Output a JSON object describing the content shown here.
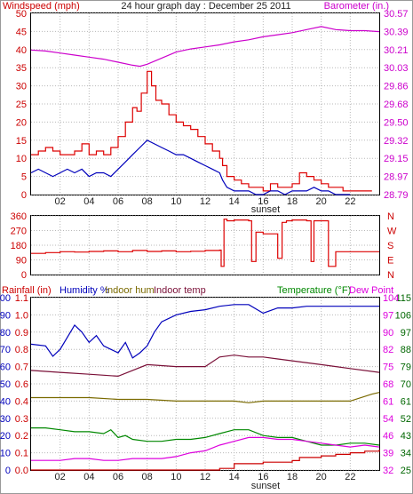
{
  "title": "24 hour graph day : December 25 2011",
  "colors": {
    "wind": "#dd0000",
    "wind_avg": "#0000bb",
    "barometer": "#cc00cc",
    "direction": "#dd0000",
    "rainfall": "#cc0000",
    "humidity": "#0000bb",
    "indoor_hum": "#7a6a00",
    "indoor_temp": "#7a1038",
    "temperature": "#008800",
    "dew_point": "#dd00dd",
    "axis_left_top": "#cc0000",
    "axis_right_top": "#cc00cc",
    "axis_right_bottom": "#006600",
    "grid": "#b8b8b8"
  },
  "chart_data": [
    {
      "type": "line",
      "panel": "wind_barometer",
      "left_label": "Windspeed (mph)",
      "right_label": "Barometer (in.)",
      "x_ticks": [
        "02",
        "04",
        "06",
        "08",
        "10",
        "12",
        "14",
        "16",
        "18",
        "20",
        "22"
      ],
      "sunset_label": "sunset",
      "x_range": [
        0,
        24
      ],
      "ylim": [
        0,
        50
      ],
      "y_ticks": [
        "0",
        "5",
        "10",
        "15",
        "20",
        "25",
        "30",
        "35",
        "40",
        "45",
        "50"
      ],
      "y2lim": [
        28.79,
        30.57
      ],
      "y2_ticks": [
        "28.79",
        "28.97",
        "29.15",
        "29.32",
        "29.50",
        "29.68",
        "29.86",
        "30.03",
        "30.21",
        "30.39",
        "30.57"
      ],
      "series": [
        {
          "key": "wind_gust",
          "x": [
            0,
            0.5,
            1,
            1.5,
            2,
            2.5,
            3,
            3.5,
            4,
            4.5,
            5,
            5.5,
            6,
            6.5,
            7,
            7.3,
            7.6,
            8,
            8.3,
            8.6,
            9,
            9.5,
            10,
            10.5,
            11,
            11.5,
            12,
            12.5,
            13,
            13.2,
            13.5,
            14,
            14.5,
            15,
            15.5,
            16,
            16.5,
            17,
            17.5,
            18,
            18.5,
            19,
            19.5,
            20,
            20.5,
            21,
            21.5,
            22,
            22.5,
            23,
            23.5
          ],
          "values": [
            11,
            12,
            13,
            12,
            11,
            11,
            12,
            14,
            11,
            12,
            11,
            13,
            16,
            20,
            24,
            23,
            28,
            34,
            30,
            26,
            25,
            22,
            20,
            19,
            18,
            16,
            14,
            12,
            10,
            8,
            5,
            4,
            3,
            2,
            2,
            1,
            3,
            2,
            2,
            3,
            6,
            5,
            4,
            3,
            2,
            2,
            1,
            1,
            1,
            1,
            1
          ]
        },
        {
          "key": "wind_avg",
          "x": [
            0,
            0.5,
            1,
            1.5,
            2,
            2.5,
            3,
            3.5,
            4,
            4.5,
            5,
            5.5,
            6,
            6.5,
            7,
            7.5,
            8,
            8.5,
            9,
            9.5,
            10,
            10.5,
            11,
            11.5,
            12,
            12.5,
            13,
            13.2,
            13.5,
            14,
            14.5,
            15,
            15.5,
            16,
            16.5,
            17,
            17.5,
            18,
            18.5,
            19,
            19.5,
            20,
            20.5,
            21,
            21.5,
            22
          ],
          "values": [
            6,
            7,
            6,
            5,
            6,
            7,
            6,
            7,
            5,
            6,
            6,
            5,
            7,
            9,
            11,
            13,
            15,
            14,
            13,
            12,
            11,
            11,
            10,
            9,
            8,
            7,
            6,
            4,
            2,
            1,
            1,
            1,
            0,
            0,
            1,
            1,
            0,
            1,
            1,
            1,
            2,
            1,
            1,
            0,
            0,
            0
          ]
        },
        {
          "key": "barometer",
          "x": [
            0,
            1,
            2,
            3,
            4,
            5,
            6,
            7,
            7.5,
            8,
            9,
            10,
            11,
            12,
            13,
            14,
            15,
            16,
            17,
            18,
            19,
            20,
            21,
            22,
            23,
            24
          ],
          "values": [
            30.21,
            30.2,
            30.18,
            30.16,
            30.14,
            30.12,
            30.09,
            30.06,
            30.05,
            30.07,
            30.13,
            30.19,
            30.22,
            30.24,
            30.26,
            30.29,
            30.31,
            30.34,
            30.36,
            30.38,
            30.41,
            30.44,
            30.41,
            30.4,
            30.4,
            30.39
          ]
        }
      ]
    },
    {
      "type": "line",
      "panel": "wind_direction",
      "y_ticks": [
        "0",
        "90",
        "180",
        "270",
        "360"
      ],
      "compass_labels": [
        "N",
        "W",
        "S",
        "E",
        "N"
      ],
      "ylim": [
        0,
        360
      ],
      "x_range": [
        0,
        24
      ],
      "series": [
        {
          "key": "direction",
          "x": [
            0,
            1,
            2,
            3,
            4,
            5,
            6,
            7,
            8,
            9,
            10,
            11,
            12,
            13,
            13.1,
            13.3,
            13.5,
            14,
            15,
            15.2,
            15.5,
            16,
            17,
            17.3,
            17.6,
            18,
            19,
            19.3,
            19.5,
            20,
            20.5,
            21,
            22,
            23,
            24
          ],
          "values": [
            130,
            135,
            140,
            138,
            142,
            145,
            140,
            148,
            142,
            145,
            140,
            143,
            148,
            150,
            50,
            340,
            330,
            335,
            330,
            80,
            260,
            250,
            100,
            320,
            330,
            335,
            330,
            80,
            330,
            330,
            50,
            140,
            140,
            140,
            140
          ]
        }
      ]
    },
    {
      "type": "line",
      "panel": "humidity_temperature",
      "legend": [
        "Rainfall (in)",
        "Humidity %",
        "Indoor hum",
        "Indoor temp",
        "Temperature (°F)",
        "Dew Point"
      ],
      "x_range": [
        0,
        24
      ],
      "x_ticks": [
        "02",
        "04",
        "06",
        "08",
        "10",
        "12",
        "14",
        "16",
        "18",
        "20",
        "22"
      ],
      "sunset_label": "sunset",
      "humidity_ticks": [
        "0",
        "10",
        "20",
        "30",
        "40",
        "50",
        "60",
        "70",
        "80",
        "90",
        "100"
      ],
      "humidity_lim": [
        0,
        100
      ],
      "rain_ticks": [
        "0.0",
        "0.1",
        "0.2",
        "0.3",
        "0.4",
        "0.6",
        "0.7",
        "0.8",
        "0.9",
        "1.0",
        "1.1"
      ],
      "rain_lim": [
        0,
        1.1
      ],
      "temp_ticks": [
        "25",
        "34",
        "43",
        "52",
        "61",
        "70",
        "79",
        "88",
        "97",
        "106",
        "115"
      ],
      "temp_outer_ticks": [
        "32",
        "39",
        "46",
        "54",
        "61",
        "68",
        "75",
        "82",
        "90",
        "97",
        "104"
      ],
      "temp_lim": [
        25,
        115
      ],
      "series": [
        {
          "key": "humidity",
          "x": [
            0,
            1,
            1.5,
            2,
            3,
            3.5,
            4,
            4.5,
            5,
            5.5,
            6,
            6.5,
            7,
            7.5,
            8,
            8.5,
            9,
            10,
            11,
            12,
            13,
            14,
            15,
            16,
            17,
            18,
            19,
            20,
            21,
            22,
            23,
            24
          ],
          "values": [
            73,
            72,
            66,
            70,
            84,
            80,
            74,
            78,
            72,
            70,
            68,
            74,
            65,
            68,
            72,
            80,
            86,
            90,
            92,
            93,
            95,
            96,
            96,
            91,
            94,
            94,
            95,
            95,
            95,
            95,
            95,
            95
          ]
        },
        {
          "key": "indoor_hum",
          "x": [
            0,
            2,
            4,
            6,
            8,
            10,
            12,
            14,
            15,
            16,
            18,
            20,
            22,
            23.5,
            24
          ],
          "values": [
            42,
            42,
            42,
            41,
            41,
            40,
            40,
            40,
            39,
            40,
            40,
            40,
            40,
            44,
            45
          ]
        },
        {
          "key": "indoor_temp",
          "x": [
            0,
            2,
            4,
            6,
            8,
            10,
            12,
            13,
            14,
            15,
            16,
            17,
            18,
            20,
            22,
            24
          ],
          "values": [
            77,
            76,
            75,
            74,
            80,
            79,
            79,
            84,
            85,
            84,
            84,
            83,
            82,
            80,
            78,
            76
          ]
        },
        {
          "key": "temperature",
          "x": [
            0,
            1,
            2,
            3,
            4,
            5,
            5.5,
            6,
            6.5,
            7,
            8,
            9,
            10,
            11,
            12,
            13,
            14,
            15,
            16,
            17,
            18,
            19,
            20,
            21,
            22,
            23,
            24
          ],
          "values": [
            47,
            47,
            46,
            45,
            45,
            44,
            46,
            42,
            43,
            41,
            40,
            40,
            41,
            41,
            42,
            44,
            46,
            46,
            43,
            42,
            42,
            40,
            38,
            38,
            39,
            39,
            38
          ]
        },
        {
          "key": "dew_point",
          "x": [
            0,
            1,
            2,
            3,
            4,
            5,
            6,
            7,
            8,
            9,
            10,
            11,
            12,
            13,
            14,
            15,
            16,
            17,
            18,
            19,
            20,
            21,
            22,
            23,
            24
          ],
          "values": [
            30,
            30,
            30,
            31,
            31,
            30,
            30,
            31,
            31,
            31,
            32,
            34,
            35,
            38,
            40,
            42,
            42,
            41,
            41,
            40,
            39,
            38,
            37,
            38,
            37
          ]
        },
        {
          "key": "rainfall",
          "x": [
            0,
            12.5,
            13,
            14,
            15,
            16,
            17,
            18,
            18.5,
            19,
            20,
            21,
            22,
            23,
            24
          ],
          "values": [
            0,
            0,
            0.01,
            0.04,
            0.04,
            0.05,
            0.05,
            0.06,
            0.08,
            0.08,
            0.09,
            0.1,
            0.11,
            0.12,
            0.13
          ]
        }
      ]
    }
  ]
}
